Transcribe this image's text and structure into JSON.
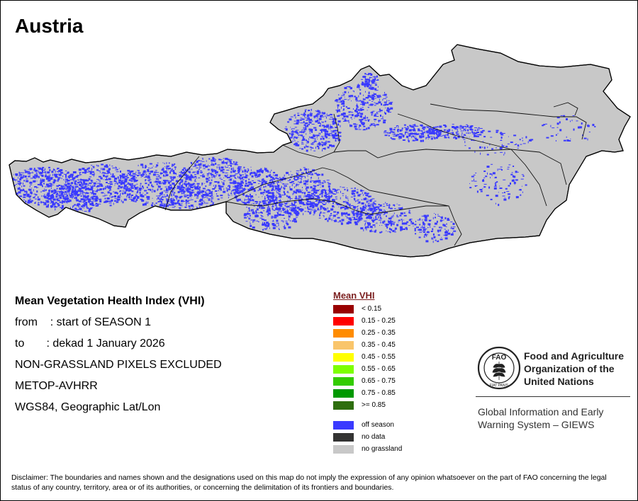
{
  "title": "Austria",
  "info": {
    "heading": "Mean Vegetation Health Index (VHI)",
    "from_line": "from    : start of SEASON 1",
    "to_line": "to       : dekad 1 January 2026",
    "exclusion": "NON-GRASSLAND PIXELS EXCLUDED",
    "sensor": "METOP-AVHRR",
    "projection": "WGS84, Geographic Lat/Lon"
  },
  "legend": {
    "title": "Mean VHI",
    "items": [
      {
        "label": "< 0.15",
        "color": "#990000"
      },
      {
        "label": "0.15 - 0.25",
        "color": "#ff0000"
      },
      {
        "label": "0.25 - 0.35",
        "color": "#ff8c00"
      },
      {
        "label": "0.35 - 0.45",
        "color": "#f9c56b"
      },
      {
        "label": "0.45 - 0.55",
        "color": "#ffff00"
      },
      {
        "label": "0.55 - 0.65",
        "color": "#7dff00"
      },
      {
        "label": "0.65 - 0.75",
        "color": "#33cc00"
      },
      {
        "label": "0.75 - 0.85",
        "color": "#009900"
      },
      {
        "label": ">= 0.85",
        "color": "#2e6e0e"
      }
    ],
    "extra_items": [
      {
        "label": "off season",
        "color": "#3a3aff"
      },
      {
        "label": "no data",
        "color": "#333333"
      },
      {
        "label": "no grassland",
        "color": "#c8c8c8"
      }
    ]
  },
  "fao": {
    "logo_text": "FAO",
    "logo_motto": "FIAT PANIS",
    "name_lines": [
      "Food and Agriculture",
      "Organization of the",
      "United Nations"
    ],
    "giews_lines": [
      "Global Information and Early",
      "Warning System – GIEWS"
    ]
  },
  "disclaimer": "Disclaimer: The boundaries and names shown and the designations used on this map do not imply the expression of any opinion whatsoever on the part of FAO concerning the legal status of any country, territory, area or of its authorities, or concerning the delimitation of its frontiers and boundaries.",
  "colors": {
    "land": "#c8c8c8",
    "off_season": "#3a3aff",
    "border": "#000000"
  }
}
